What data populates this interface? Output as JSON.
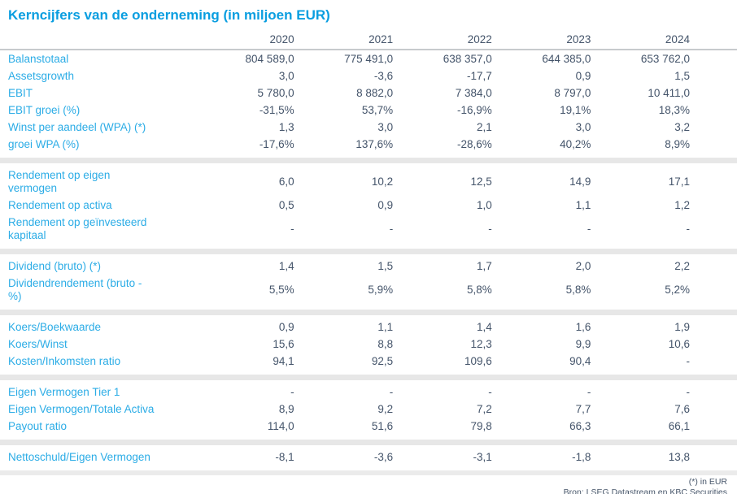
{
  "title": "Kerncijfers van de onderneming (in miljoen EUR)",
  "years": [
    "2020",
    "2021",
    "2022",
    "2023",
    "2024"
  ],
  "sections": [
    {
      "rows": [
        {
          "label": "Balanstotaal",
          "values": [
            "804 589,0",
            "775 491,0",
            "638 357,0",
            "644 385,0",
            "653 762,0"
          ]
        },
        {
          "label": "Assetsgrowth",
          "values": [
            "3,0",
            "-3,6",
            "-17,7",
            "0,9",
            "1,5"
          ]
        },
        {
          "label": "EBIT",
          "values": [
            "5 780,0",
            "8 882,0",
            "7 384,0",
            "8 797,0",
            "10 411,0"
          ]
        },
        {
          "label": "EBIT groei (%)",
          "values": [
            "-31,5%",
            "53,7%",
            "-16,9%",
            "19,1%",
            "18,3%"
          ]
        },
        {
          "label": "Winst per aandeel (WPA) (*)",
          "values": [
            "1,3",
            "3,0",
            "2,1",
            "3,0",
            "3,2"
          ]
        },
        {
          "label": "groei WPA (%)",
          "values": [
            "-17,6%",
            "137,6%",
            "-28,6%",
            "40,2%",
            "8,9%"
          ]
        }
      ]
    },
    {
      "rows": [
        {
          "label": "Rendement op eigen\nvermogen",
          "values": [
            "6,0",
            "10,2",
            "12,5",
            "14,9",
            "17,1"
          ]
        },
        {
          "label": "Rendement op activa",
          "values": [
            "0,5",
            "0,9",
            "1,0",
            "1,1",
            "1,2"
          ]
        },
        {
          "label": "Rendement op geïnvesteerd\nkapitaal",
          "values": [
            "-",
            "-",
            "-",
            "-",
            "-"
          ]
        }
      ]
    },
    {
      "rows": [
        {
          "label": "Dividend (bruto) (*)",
          "values": [
            "1,4",
            "1,5",
            "1,7",
            "2,0",
            "2,2"
          ]
        },
        {
          "label": "Dividendrendement (bruto -\n%)",
          "values": [
            "5,5%",
            "5,9%",
            "5,8%",
            "5,8%",
            "5,2%"
          ]
        }
      ]
    },
    {
      "rows": [
        {
          "label": "Koers/Boekwaarde",
          "values": [
            "0,9",
            "1,1",
            "1,4",
            "1,6",
            "1,9"
          ]
        },
        {
          "label": "Koers/Winst",
          "values": [
            "15,6",
            "8,8",
            "12,3",
            "9,9",
            "10,6"
          ]
        },
        {
          "label": "Kosten/Inkomsten ratio",
          "values": [
            "94,1",
            "92,5",
            "109,6",
            "90,4",
            "-"
          ]
        }
      ]
    },
    {
      "rows": [
        {
          "label": "Eigen Vermogen Tier 1",
          "values": [
            "-",
            "-",
            "-",
            "-",
            "-"
          ]
        },
        {
          "label": "Eigen Vermogen/Totale Activa",
          "values": [
            "8,9",
            "9,2",
            "7,2",
            "7,7",
            "7,6"
          ]
        },
        {
          "label": "Payout ratio",
          "values": [
            "114,0",
            "51,6",
            "79,8",
            "66,3",
            "66,1"
          ]
        }
      ]
    },
    {
      "rows": [
        {
          "label": "Nettoschuld/Eigen Vermogen",
          "values": [
            "-8,1",
            "-3,6",
            "-3,1",
            "-1,8",
            "13,8"
          ]
        }
      ]
    }
  ],
  "footnote": "(*) in EUR",
  "source": "Bron: LSEG Datastream en KBC Securities",
  "colors": {
    "title_blue": "#0A9EE0",
    "label_blue": "#2BACE6",
    "value_slate": "#44546A",
    "band_gray": "#E7E7E7",
    "header_line_gray": "#C7CACD"
  }
}
